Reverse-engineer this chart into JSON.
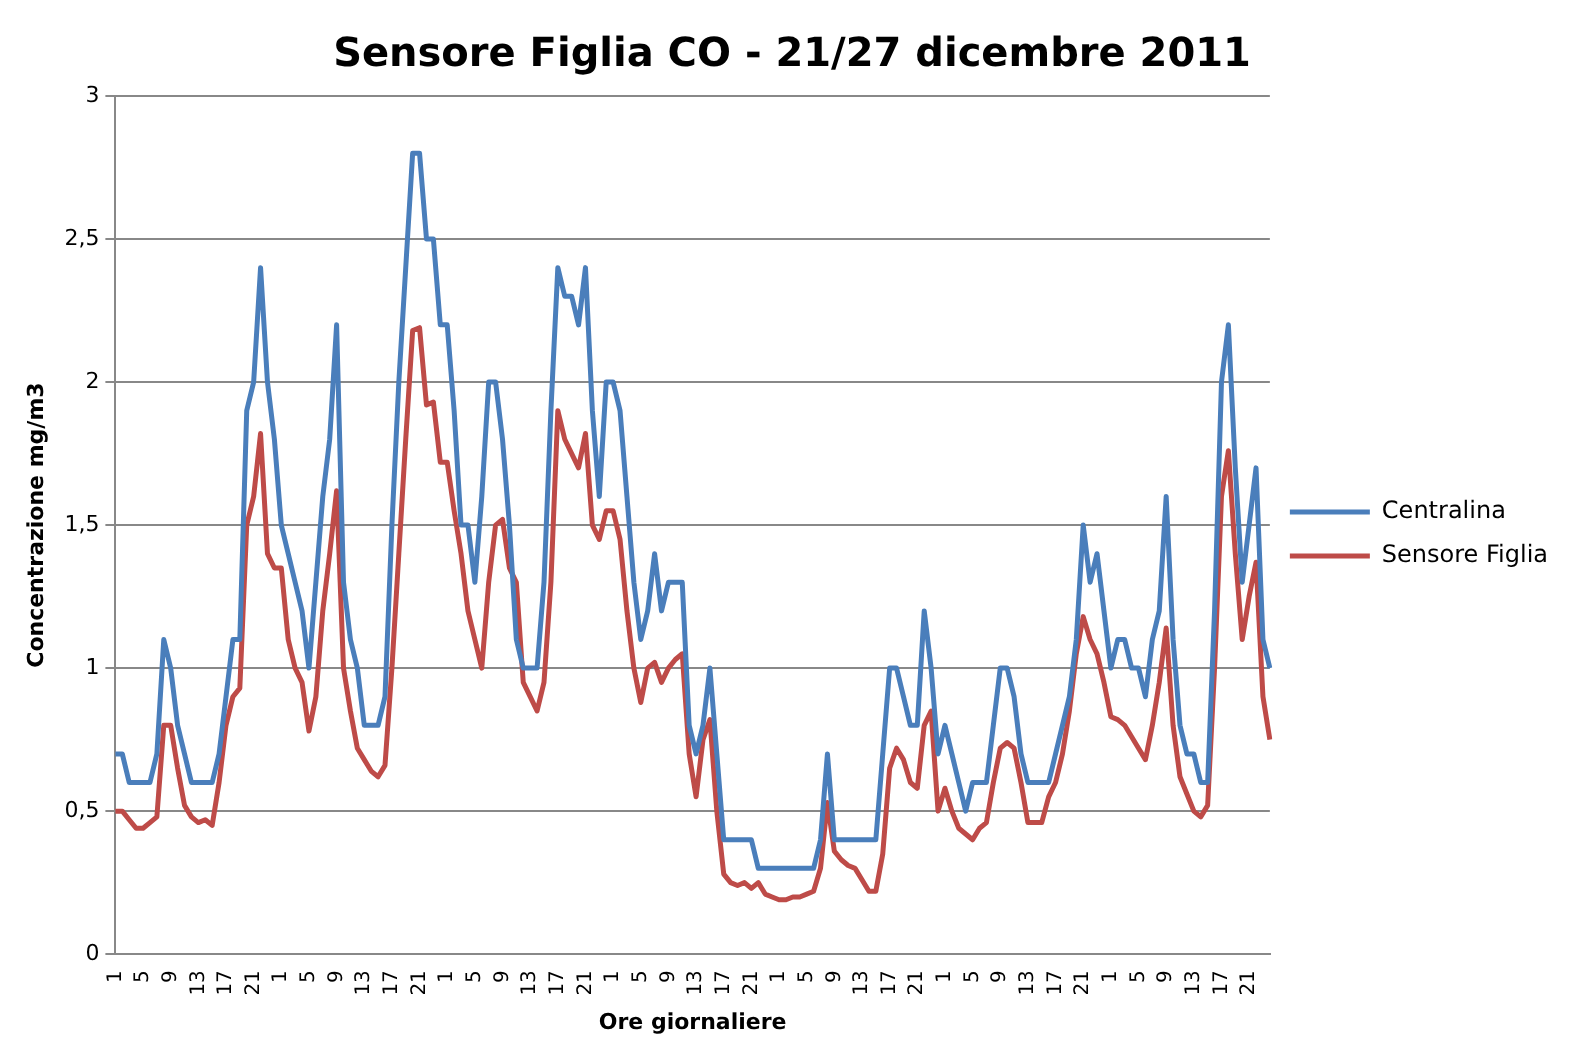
{
  "chart_data": {
    "type": "line",
    "title": "Sensore Figlia CO - 21/27 dicembre 2011",
    "xlabel": "Ore giornaliere",
    "ylabel": "Concentrazione mg/m3",
    "categories": [
      "1",
      null,
      null,
      null,
      "5",
      null,
      null,
      null,
      "9",
      null,
      null,
      null,
      "13",
      null,
      null,
      null,
      "17",
      null,
      null,
      null,
      "21",
      null,
      null,
      null,
      "1",
      null,
      null,
      null,
      "5",
      null,
      null,
      null,
      "9",
      null,
      null,
      null,
      "13",
      null,
      null,
      null,
      "17",
      null,
      null,
      null,
      "21",
      null,
      null,
      null,
      "1",
      null,
      null,
      null,
      "5",
      null,
      null,
      null,
      "9",
      null,
      null,
      null,
      "13",
      null,
      null,
      null,
      "17",
      null,
      null,
      null,
      "21",
      null,
      null,
      null,
      "1",
      null,
      null,
      null,
      "5",
      null,
      null,
      null,
      "9",
      null,
      null,
      null,
      "13",
      null,
      null,
      null,
      "17",
      null,
      null,
      null,
      "21",
      null,
      null,
      null,
      "1",
      null,
      null,
      null,
      "5",
      null,
      null,
      null,
      "9",
      null,
      null,
      null,
      "13",
      null,
      null,
      null,
      "17",
      null,
      null,
      null,
      "21",
      null,
      null,
      null,
      "1",
      null,
      null,
      null,
      "5",
      null,
      null,
      null,
      "9",
      null,
      null,
      null,
      "13",
      null,
      null,
      null,
      "17",
      null,
      null,
      null,
      "21",
      null,
      null,
      null,
      "1",
      null,
      null,
      null,
      "5",
      null,
      null,
      null,
      "9",
      null,
      null,
      null,
      "13",
      null,
      null,
      null,
      "17",
      null,
      null,
      null,
      "21",
      null,
      null,
      null
    ],
    "series": [
      {
        "name": "Centralina",
        "color": "#4a7ebb",
        "values": [
          0.7,
          0.7,
          0.6,
          0.6,
          0.6,
          0.6,
          0.7,
          1.1,
          1.0,
          0.8,
          0.7,
          0.6,
          0.6,
          0.6,
          0.6,
          0.7,
          0.9,
          1.1,
          1.1,
          1.9,
          2.0,
          2.4,
          2.0,
          1.8,
          1.5,
          1.4,
          1.3,
          1.2,
          1.0,
          1.3,
          1.6,
          1.8,
          2.2,
          1.3,
          1.1,
          1.0,
          0.8,
          0.8,
          0.8,
          0.9,
          1.5,
          2.0,
          2.4,
          2.8,
          2.8,
          2.5,
          2.5,
          2.2,
          2.2,
          1.9,
          1.5,
          1.5,
          1.3,
          1.6,
          2.0,
          2.0,
          1.8,
          1.5,
          1.1,
          1.0,
          1.0,
          1.0,
          1.3,
          1.9,
          2.4,
          2.3,
          2.3,
          2.2,
          2.4,
          1.9,
          1.6,
          2.0,
          2.0,
          1.9,
          1.6,
          1.3,
          1.1,
          1.2,
          1.4,
          1.2,
          1.3,
          1.3,
          1.3,
          0.8,
          0.7,
          0.8,
          1.0,
          0.7,
          0.4,
          0.4,
          0.4,
          0.4,
          0.4,
          0.3,
          0.3,
          0.3,
          0.3,
          0.3,
          0.3,
          0.3,
          0.3,
          0.3,
          0.4,
          0.7,
          0.4,
          0.4,
          0.4,
          0.4,
          0.4,
          0.4,
          0.4,
          0.7,
          1.0,
          1.0,
          0.9,
          0.8,
          0.8,
          1.2,
          1.0,
          0.7,
          0.8,
          0.7,
          0.6,
          0.5,
          0.6,
          0.6,
          0.6,
          0.8,
          1.0,
          1.0,
          0.9,
          0.7,
          0.6,
          0.6,
          0.6,
          0.6,
          0.7,
          0.8,
          0.9,
          1.1,
          1.5,
          1.3,
          1.4,
          1.2,
          1.0,
          1.1,
          1.1,
          1.0,
          1.0,
          0.9,
          1.1,
          1.2,
          1.6,
          1.1,
          0.8,
          0.7,
          0.7,
          0.6,
          0.6,
          1.2,
          2.0,
          2.2,
          1.7,
          1.3,
          1.5,
          1.7,
          1.1,
          1.0
        ]
      },
      {
        "name": "Sensore Figlia",
        "color": "#be4b48",
        "values": [
          0.5,
          0.5,
          0.47,
          0.44,
          0.44,
          0.46,
          0.48,
          0.8,
          0.8,
          0.65,
          0.52,
          0.48,
          0.46,
          0.47,
          0.45,
          0.6,
          0.8,
          0.9,
          0.93,
          1.5,
          1.6,
          1.82,
          1.4,
          1.35,
          1.35,
          1.1,
          1.0,
          0.95,
          0.78,
          0.9,
          1.2,
          1.4,
          1.62,
          1.0,
          0.85,
          0.72,
          0.68,
          0.64,
          0.62,
          0.66,
          1.0,
          1.4,
          1.8,
          2.18,
          2.19,
          1.92,
          1.93,
          1.72,
          1.72,
          1.55,
          1.4,
          1.2,
          1.1,
          1.0,
          1.3,
          1.5,
          1.52,
          1.35,
          1.3,
          0.95,
          0.9,
          0.85,
          0.95,
          1.3,
          1.9,
          1.8,
          1.75,
          1.7,
          1.82,
          1.5,
          1.45,
          1.55,
          1.55,
          1.45,
          1.2,
          1.0,
          0.88,
          1.0,
          1.02,
          0.95,
          1.0,
          1.03,
          1.05,
          0.7,
          0.55,
          0.75,
          0.82,
          0.5,
          0.28,
          0.25,
          0.24,
          0.25,
          0.23,
          0.25,
          0.21,
          0.2,
          0.19,
          0.19,
          0.2,
          0.2,
          0.21,
          0.22,
          0.3,
          0.53,
          0.36,
          0.33,
          0.31,
          0.3,
          0.26,
          0.22,
          0.22,
          0.35,
          0.65,
          0.72,
          0.68,
          0.6,
          0.58,
          0.8,
          0.85,
          0.5,
          0.58,
          0.5,
          0.44,
          0.42,
          0.4,
          0.44,
          0.46,
          0.6,
          0.72,
          0.74,
          0.72,
          0.6,
          0.46,
          0.46,
          0.46,
          0.55,
          0.6,
          0.7,
          0.85,
          1.05,
          1.18,
          1.1,
          1.05,
          0.95,
          0.83,
          0.82,
          0.8,
          0.76,
          0.72,
          0.68,
          0.8,
          0.95,
          1.14,
          0.8,
          0.62,
          0.56,
          0.5,
          0.48,
          0.52,
          1.0,
          1.6,
          1.76,
          1.4,
          1.1,
          1.25,
          1.37,
          0.9,
          0.75
        ]
      }
    ],
    "ylim": [
      0,
      3
    ],
    "yticks": [
      0,
      {
        "value": 0.5,
        "label": "0,5"
      },
      1,
      {
        "value": 1.5,
        "label": "1,5"
      },
      2,
      {
        "value": 2.5,
        "label": "2,5"
      },
      3
    ],
    "grid": "y",
    "legend": "right",
    "marker": "none",
    "line_style": "solid"
  }
}
